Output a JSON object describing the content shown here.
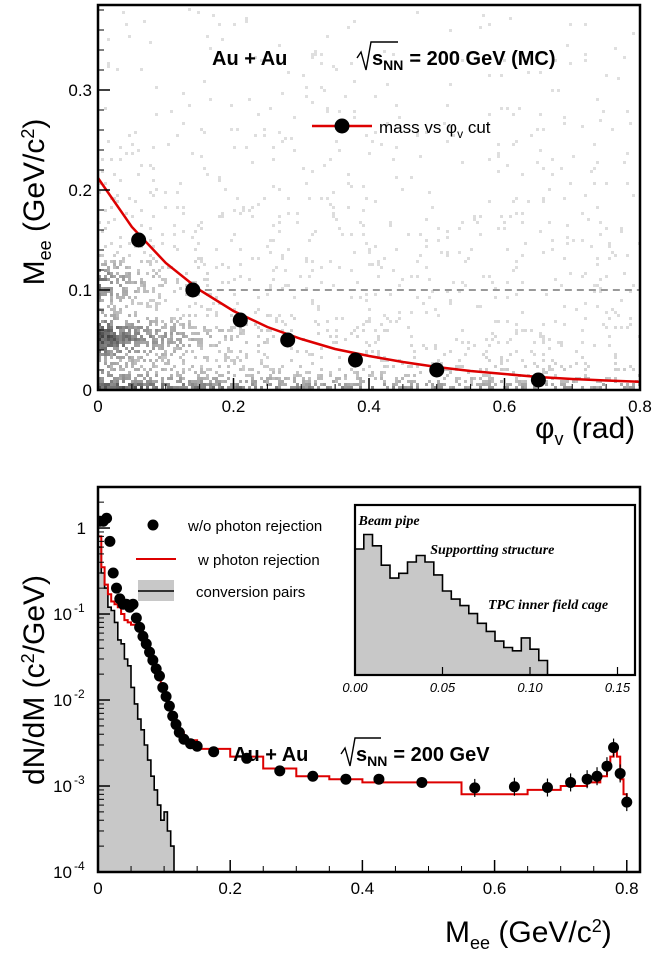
{
  "chart_data": [
    {
      "type": "scatter",
      "title": "",
      "annotation": {
        "system": "Au + Au",
        "energy_prefix": "s",
        "energy_sub": "NN",
        "energy_value": "= 200 GeV (MC)"
      },
      "xlabel": {
        "sym": "φ",
        "sub": "v",
        "unit": " (rad)"
      },
      "ylabel": {
        "main": "M",
        "sub": "ee",
        "unit_pre": " (GeV/c",
        "unit_sup": "2",
        "unit_post": ")"
      },
      "xlim": [
        0,
        0.8
      ],
      "ylim": [
        0,
        0.385
      ],
      "x_ticks": [
        "0",
        "0.2",
        "0.4",
        "0.6",
        "0.8"
      ],
      "x_tick_values": [
        0,
        0.2,
        0.4,
        0.6,
        0.8
      ],
      "y_ticks": [
        "0",
        "0.1",
        "0.2",
        "0.3"
      ],
      "y_tick_values": [
        0,
        0.1,
        0.2,
        0.3
      ],
      "series": [
        {
          "name": "mass vs φv cut",
          "legend_main": "mass vs φ",
          "legend_sub": "v",
          "legend_post": " cut",
          "color": "#dd0000",
          "points_x": [
            0.06,
            0.14,
            0.21,
            0.28,
            0.38,
            0.5,
            0.65
          ],
          "points_y": [
            0.15,
            0.1,
            0.07,
            0.05,
            0.03,
            0.02,
            0.01
          ],
          "fit_x": [
            0.0,
            0.05,
            0.1,
            0.15,
            0.2,
            0.25,
            0.3,
            0.35,
            0.4,
            0.45,
            0.5,
            0.55,
            0.6,
            0.65,
            0.7,
            0.75,
            0.8
          ],
          "fit_y": [
            0.212,
            0.163,
            0.127,
            0.1,
            0.079,
            0.063,
            0.051,
            0.041,
            0.034,
            0.028,
            0.023,
            0.019,
            0.016,
            0.013,
            0.011,
            0.0095,
            0.0082
          ]
        }
      ],
      "reference_line_y": 0.1,
      "background": "simulated pair density (grey scale)",
      "colors": {
        "fit": "#dd0000",
        "points": "#000000",
        "reference": "#999999",
        "density": "#555555"
      }
    },
    {
      "type": "line",
      "title": "",
      "annotation": {
        "system": "Au + Au",
        "energy_prefix": "s",
        "energy_sub": "NN",
        "energy_value": "= 200 GeV"
      },
      "xlabel": {
        "main": "M",
        "sub": "ee",
        "unit_pre": " (GeV/c",
        "unit_sup": "2",
        "unit_post": ")"
      },
      "ylabel": {
        "main": "dN/dM (c",
        "sup": "2",
        "post": "/GeV)"
      },
      "xlim": [
        0,
        0.82
      ],
      "ylim": [
        0.0001,
        3
      ],
      "log_y": true,
      "x_ticks": [
        "0",
        "0.2",
        "0.4",
        "0.6",
        "0.8"
      ],
      "x_tick_values": [
        0,
        0.2,
        0.4,
        0.6,
        0.8
      ],
      "y_ticks": [
        {
          "base": "1",
          "exp": "",
          "v": 1
        },
        {
          "base": "10",
          "exp": "-1",
          "v": 0.1
        },
        {
          "base": "10",
          "exp": "-2",
          "v": 0.01
        },
        {
          "base": "10",
          "exp": "-3",
          "v": 0.001
        },
        {
          "base": "10",
          "exp": "-4",
          "v": 0.0001
        }
      ],
      "series": [
        {
          "name": "w/o photon rejection",
          "kind": "points",
          "color": "#000000",
          "x": [
            0.003,
            0.008,
            0.013,
            0.018,
            0.023,
            0.028,
            0.033,
            0.038,
            0.043,
            0.048,
            0.053,
            0.058,
            0.063,
            0.068,
            0.073,
            0.078,
            0.083,
            0.088,
            0.093,
            0.098,
            0.103,
            0.108,
            0.113,
            0.118,
            0.123,
            0.13,
            0.14,
            0.15,
            0.175,
            0.225,
            0.275,
            0.325,
            0.375,
            0.425,
            0.49,
            0.57,
            0.63,
            0.68,
            0.715,
            0.74,
            0.755,
            0.77,
            0.78,
            0.79,
            0.8
          ],
          "y": [
            1.2,
            1.2,
            1.3,
            0.7,
            0.3,
            0.2,
            0.15,
            0.13,
            0.13,
            0.12,
            0.13,
            0.09,
            0.07,
            0.055,
            0.045,
            0.036,
            0.029,
            0.023,
            0.019,
            0.014,
            0.011,
            0.0085,
            0.0065,
            0.0052,
            0.0042,
            0.0035,
            0.0031,
            0.0029,
            0.0025,
            0.0021,
            0.0015,
            0.0013,
            0.0012,
            0.0012,
            0.0011,
            0.00095,
            0.00098,
            0.00096,
            0.0011,
            0.0012,
            0.0013,
            0.0017,
            0.0028,
            0.0014,
            0.00065
          ]
        },
        {
          "name": "w photon rejection",
          "kind": "step",
          "color": "#dd0000",
          "edges": [
            0,
            0.005,
            0.01,
            0.015,
            0.02,
            0.025,
            0.03,
            0.035,
            0.04,
            0.045,
            0.05,
            0.055,
            0.06,
            0.065,
            0.07,
            0.075,
            0.08,
            0.085,
            0.09,
            0.095,
            0.1,
            0.105,
            0.11,
            0.115,
            0.12,
            0.13,
            0.15,
            0.2,
            0.25,
            0.3,
            0.35,
            0.4,
            0.45,
            0.55,
            0.6,
            0.65,
            0.7,
            0.72,
            0.74,
            0.76,
            0.77,
            0.775,
            0.78,
            0.785,
            0.79,
            0.795,
            0.8,
            0.805
          ],
          "values": [
            0.8,
            0.35,
            0.22,
            0.17,
            0.14,
            0.13,
            0.12,
            0.1,
            0.085,
            0.08,
            0.075,
            0.075,
            0.07,
            0.055,
            0.045,
            0.036,
            0.029,
            0.023,
            0.019,
            0.014,
            0.011,
            0.0085,
            0.0065,
            0.0052,
            0.0042,
            0.0034,
            0.0027,
            0.0022,
            0.0016,
            0.0013,
            0.0012,
            0.0011,
            0.0011,
            0.0008,
            0.0008,
            0.0009,
            0.001,
            0.001,
            0.0011,
            0.0013,
            0.0016,
            0.0022,
            0.0028,
            0.0022,
            0.0012,
            0.0008,
            0.0006
          ]
        },
        {
          "name": "conversion pairs",
          "kind": "filled-step",
          "color": "#000000",
          "fill": "#c8c8c8",
          "edges": [
            0,
            0.005,
            0.01,
            0.015,
            0.02,
            0.025,
            0.03,
            0.035,
            0.04,
            0.045,
            0.05,
            0.055,
            0.06,
            0.065,
            0.07,
            0.075,
            0.08,
            0.085,
            0.09,
            0.095,
            0.1,
            0.105,
            0.11,
            0.115
          ],
          "values": [
            0.6,
            0.3,
            0.2,
            0.12,
            0.11,
            0.08,
            0.05,
            0.045,
            0.03,
            0.025,
            0.014,
            0.009,
            0.006,
            0.0045,
            0.003,
            0.002,
            0.0013,
            0.0009,
            0.0006,
            0.0004,
            0.0005,
            0.0003,
            0.0002
          ]
        }
      ],
      "inset": {
        "type": "bar",
        "xlim": [
          0,
          0.16
        ],
        "x_ticks": [
          "0.00",
          "0.05",
          "0.10",
          "0.15"
        ],
        "x_tick_values": [
          0,
          0.05,
          0.1,
          0.15
        ],
        "edges": [
          0,
          0.005,
          0.01,
          0.015,
          0.02,
          0.025,
          0.03,
          0.035,
          0.04,
          0.045,
          0.05,
          0.055,
          0.06,
          0.065,
          0.07,
          0.075,
          0.08,
          0.085,
          0.09,
          0.095,
          0.1,
          0.105,
          0.11,
          0.115
        ],
        "values": [
          0.78,
          0.87,
          0.8,
          0.68,
          0.6,
          0.63,
          0.7,
          0.74,
          0.7,
          0.62,
          0.52,
          0.47,
          0.43,
          0.38,
          0.32,
          0.27,
          0.21,
          0.17,
          0.15,
          0.23,
          0.16,
          0.09,
          0.0
        ],
        "annotations": [
          {
            "text": "Beam pipe",
            "x": 0.002,
            "y": 0.93
          },
          {
            "text": "Supportting structure",
            "x": 0.043,
            "y": 0.75
          },
          {
            "text": "TPC inner field cage",
            "x": 0.076,
            "y": 0.41
          }
        ],
        "fill": "#c8c8c8"
      },
      "colors": {
        "data": "#000000",
        "rejection": "#dd0000",
        "conversion_fill": "#c8c8c8"
      }
    }
  ]
}
